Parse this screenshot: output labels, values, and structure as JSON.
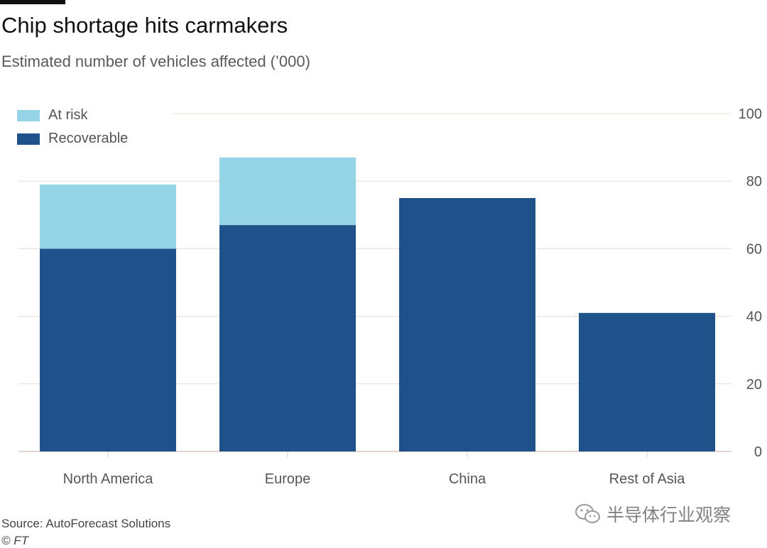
{
  "chart_data": {
    "type": "bar",
    "stacked": true,
    "title": "Chip shortage hits carmakers",
    "subtitle": "Estimated number of vehicles affected (’000)",
    "categories": [
      "North America",
      "Europe",
      "China",
      "Rest of Asia"
    ],
    "series": [
      {
        "name": "Recoverable",
        "values": [
          60,
          67,
          75,
          41
        ],
        "color": "#1f528a"
      },
      {
        "name": "At risk",
        "values": [
          19,
          20,
          0,
          0
        ],
        "color": "#95d3e6"
      }
    ],
    "ylim": [
      0,
      100
    ],
    "yticks": [
      0,
      20,
      40,
      60,
      80,
      100
    ],
    "ytick_labels": [
      "0",
      "20",
      "40",
      "60",
      "80",
      "100"
    ],
    "yaxis_position": "right",
    "grid": true,
    "legend": [
      {
        "label": "At risk",
        "color": "#95d3e6"
      },
      {
        "label": "Recoverable",
        "color": "#1f528a"
      }
    ],
    "legend_position": "top-left",
    "source": "Source: AutoForecast Solutions",
    "credit": "© FT"
  },
  "watermark": {
    "text": "半导体行业观察",
    "icon": "wechat-icon"
  },
  "colors": {
    "grid": "#e8dcd3",
    "axis": "#d9c9bd",
    "accent_bar": "#111111"
  }
}
